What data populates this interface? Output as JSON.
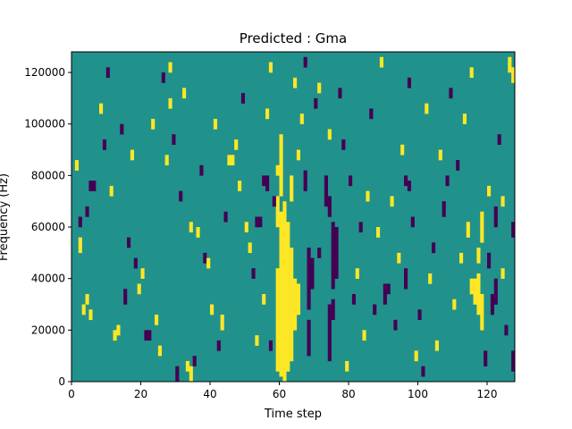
{
  "chart_data": {
    "type": "heatmap",
    "title": "Predicted : Gma",
    "xlabel": "Time step",
    "ylabel": "Frequency (Hz)",
    "xlim": [
      0,
      128
    ],
    "ylim": [
      0,
      128000
    ],
    "x_ticks": [
      0,
      20,
      40,
      60,
      80,
      100,
      120
    ],
    "y_ticks": [
      0,
      20000,
      40000,
      60000,
      80000,
      100000,
      120000
    ],
    "x_tick_labels": [
      "0",
      "20",
      "40",
      "60",
      "80",
      "100",
      "120"
    ],
    "y_tick_labels": [
      "0",
      "20000",
      "40000",
      "60000",
      "80000",
      "100000",
      "120000"
    ],
    "grid": false,
    "colormap": {
      "background_value": 0,
      "high_value": 1,
      "low_value": -1,
      "background_color": "#21918c",
      "high_color": "#fde725",
      "low_color": "#440154"
    },
    "column_bins": 128,
    "row_bins": 64,
    "cell_height_hz": 2000,
    "events": [
      {
        "x": 59,
        "y0": 4000,
        "y1": 44000,
        "value": 1
      },
      {
        "x": 60,
        "y0": 2000,
        "y1": 66000,
        "value": 1
      },
      {
        "x": 61,
        "y0": 0,
        "y1": 70000,
        "value": 1
      },
      {
        "x": 62,
        "y0": 4000,
        "y1": 62000,
        "value": 1
      },
      {
        "x": 63,
        "y0": 8000,
        "y1": 52000,
        "value": 1
      },
      {
        "x": 64,
        "y0": 20000,
        "y1": 40000,
        "value": 1
      },
      {
        "x": 65,
        "y0": 26000,
        "y1": 38000,
        "value": 1
      },
      {
        "x": 60,
        "y0": 72000,
        "y1": 96000,
        "value": 1
      },
      {
        "x": 59,
        "y0": 60000,
        "y1": 72000,
        "value": 1
      },
      {
        "x": 59,
        "y0": 80000,
        "y1": 84000,
        "value": 1
      },
      {
        "x": 63,
        "y0": 70000,
        "y1": 80000,
        "value": 1
      },
      {
        "x": 65,
        "y0": 86000,
        "y1": 90000,
        "value": 1
      },
      {
        "x": 68,
        "y0": 28000,
        "y1": 52000,
        "value": -1
      },
      {
        "x": 69,
        "y0": 36000,
        "y1": 48000,
        "value": -1
      },
      {
        "x": 67,
        "y0": 74000,
        "y1": 82000,
        "value": -1
      },
      {
        "x": 68,
        "y0": 10000,
        "y1": 24000,
        "value": -1
      },
      {
        "x": 74,
        "y0": 8000,
        "y1": 30000,
        "value": -1
      },
      {
        "x": 75,
        "y0": 36000,
        "y1": 62000,
        "value": -1
      },
      {
        "x": 76,
        "y0": 40000,
        "y1": 60000,
        "value": -1
      },
      {
        "x": 74,
        "y0": 64000,
        "y1": 72000,
        "value": -1
      },
      {
        "x": 75,
        "y0": 24000,
        "y1": 32000,
        "value": -1
      },
      {
        "x": 73,
        "y0": 68000,
        "y1": 80000,
        "value": -1
      },
      {
        "x": 116,
        "y0": 30000,
        "y1": 40000,
        "value": 1
      },
      {
        "x": 117,
        "y0": 26000,
        "y1": 42000,
        "value": 1
      },
      {
        "x": 118,
        "y0": 20000,
        "y1": 34000,
        "value": 1
      },
      {
        "x": 118,
        "y0": 54000,
        "y1": 66000,
        "value": 1
      },
      {
        "x": 117,
        "y0": 46000,
        "y1": 52000,
        "value": 1
      },
      {
        "x": 121,
        "y0": 26000,
        "y1": 34000,
        "value": -1
      },
      {
        "x": 122,
        "y0": 30000,
        "y1": 40000,
        "value": -1
      },
      {
        "x": 120,
        "y0": 44000,
        "y1": 50000,
        "value": -1
      },
      {
        "x": 122,
        "y0": 60000,
        "y1": 68000,
        "value": -1
      },
      {
        "x": 114,
        "y0": 56000,
        "y1": 62000,
        "value": 1
      },
      {
        "x": 115,
        "y0": 34000,
        "y1": 40000,
        "value": 1
      },
      {
        "x": 34,
        "y0": 0,
        "y1": 6000,
        "value": 1
      },
      {
        "x": 33,
        "y0": 4000,
        "y1": 8000,
        "value": 1
      },
      {
        "x": 30,
        "y0": 0,
        "y1": 6000,
        "value": -1
      },
      {
        "x": 35,
        "y0": 6000,
        "y1": 10000,
        "value": -1
      },
      {
        "x": 45,
        "y0": 84000,
        "y1": 88000,
        "value": 1
      },
      {
        "x": 46,
        "y0": 84000,
        "y1": 88000,
        "value": 1
      },
      {
        "x": 3,
        "y0": 26000,
        "y1": 30000,
        "value": 1
      },
      {
        "x": 4,
        "y0": 30000,
        "y1": 34000,
        "value": 1
      },
      {
        "x": 5,
        "y0": 24000,
        "y1": 28000,
        "value": 1
      },
      {
        "x": 5,
        "y0": 74000,
        "y1": 78000,
        "value": -1
      },
      {
        "x": 6,
        "y0": 74000,
        "y1": 78000,
        "value": -1
      },
      {
        "x": 2,
        "y0": 50000,
        "y1": 56000,
        "value": 1
      },
      {
        "x": 1,
        "y0": 82000,
        "y1": 86000,
        "value": 1
      },
      {
        "x": 90,
        "y0": 30000,
        "y1": 38000,
        "value": -1
      },
      {
        "x": 91,
        "y0": 34000,
        "y1": 38000,
        "value": -1
      },
      {
        "x": 96,
        "y0": 36000,
        "y1": 44000,
        "value": -1
      },
      {
        "x": 96,
        "y0": 76000,
        "y1": 80000,
        "value": -1
      },
      {
        "x": 97,
        "y0": 74000,
        "y1": 78000,
        "value": -1
      },
      {
        "x": 107,
        "y0": 64000,
        "y1": 70000,
        "value": -1
      },
      {
        "x": 108,
        "y0": 76000,
        "y1": 80000,
        "value": -1
      },
      {
        "x": 127,
        "y0": 4000,
        "y1": 12000,
        "value": -1
      },
      {
        "x": 127,
        "y0": 56000,
        "y1": 62000,
        "value": -1
      },
      {
        "x": 126,
        "y0": 120000,
        "y1": 126000,
        "value": 1
      },
      {
        "x": 127,
        "y0": 116000,
        "y1": 122000,
        "value": 1
      },
      {
        "x": 53,
        "y0": 60000,
        "y1": 64000,
        "value": -1
      },
      {
        "x": 54,
        "y0": 60000,
        "y1": 64000,
        "value": -1
      },
      {
        "x": 55,
        "y0": 76000,
        "y1": 80000,
        "value": -1
      },
      {
        "x": 56,
        "y0": 74000,
        "y1": 80000,
        "value": -1
      },
      {
        "x": 58,
        "y0": 68000,
        "y1": 72000,
        "value": -1
      },
      {
        "x": 57,
        "y0": 12000,
        "y1": 16000,
        "value": -1
      },
      {
        "x": 2,
        "y0": 60000,
        "y1": 64000,
        "value": -1
      },
      {
        "x": 4,
        "y0": 64000,
        "y1": 68000,
        "value": -1
      },
      {
        "x": 12,
        "y0": 16000,
        "y1": 20000,
        "value": 1
      },
      {
        "x": 13,
        "y0": 18000,
        "y1": 22000,
        "value": 1
      },
      {
        "x": 15,
        "y0": 30000,
        "y1": 36000,
        "value": -1
      },
      {
        "x": 16,
        "y0": 52000,
        "y1": 56000,
        "value": -1
      },
      {
        "x": 18,
        "y0": 44000,
        "y1": 48000,
        "value": -1
      },
      {
        "x": 19,
        "y0": 34000,
        "y1": 38000,
        "value": 1
      },
      {
        "x": 20,
        "y0": 40000,
        "y1": 44000,
        "value": 1
      },
      {
        "x": 21,
        "y0": 16000,
        "y1": 20000,
        "value": -1
      },
      {
        "x": 22,
        "y0": 16000,
        "y1": 20000,
        "value": -1
      },
      {
        "x": 24,
        "y0": 22000,
        "y1": 26000,
        "value": 1
      },
      {
        "x": 25,
        "y0": 10000,
        "y1": 14000,
        "value": 1
      },
      {
        "x": 26,
        "y0": 116000,
        "y1": 120000,
        "value": -1
      },
      {
        "x": 28,
        "y0": 120000,
        "y1": 124000,
        "value": 1
      },
      {
        "x": 28,
        "y0": 106000,
        "y1": 110000,
        "value": 1
      },
      {
        "x": 31,
        "y0": 70000,
        "y1": 74000,
        "value": -1
      },
      {
        "x": 34,
        "y0": 58000,
        "y1": 62000,
        "value": 1
      },
      {
        "x": 36,
        "y0": 56000,
        "y1": 60000,
        "value": 1
      },
      {
        "x": 38,
        "y0": 46000,
        "y1": 50000,
        "value": -1
      },
      {
        "x": 39,
        "y0": 44000,
        "y1": 48000,
        "value": 1
      },
      {
        "x": 40,
        "y0": 26000,
        "y1": 30000,
        "value": 1
      },
      {
        "x": 42,
        "y0": 12000,
        "y1": 16000,
        "value": -1
      },
      {
        "x": 43,
        "y0": 20000,
        "y1": 26000,
        "value": 1
      },
      {
        "x": 44,
        "y0": 62000,
        "y1": 66000,
        "value": -1
      },
      {
        "x": 48,
        "y0": 74000,
        "y1": 78000,
        "value": 1
      },
      {
        "x": 50,
        "y0": 58000,
        "y1": 62000,
        "value": 1
      },
      {
        "x": 51,
        "y0": 50000,
        "y1": 54000,
        "value": 1
      },
      {
        "x": 52,
        "y0": 40000,
        "y1": 44000,
        "value": -1
      },
      {
        "x": 53,
        "y0": 14000,
        "y1": 18000,
        "value": 1
      },
      {
        "x": 55,
        "y0": 30000,
        "y1": 34000,
        "value": 1
      },
      {
        "x": 56,
        "y0": 102000,
        "y1": 106000,
        "value": 1
      },
      {
        "x": 57,
        "y0": 120000,
        "y1": 124000,
        "value": 1
      },
      {
        "x": 64,
        "y0": 114000,
        "y1": 118000,
        "value": 1
      },
      {
        "x": 66,
        "y0": 100000,
        "y1": 104000,
        "value": 1
      },
      {
        "x": 67,
        "y0": 122000,
        "y1": 126000,
        "value": -1
      },
      {
        "x": 70,
        "y0": 106000,
        "y1": 110000,
        "value": -1
      },
      {
        "x": 71,
        "y0": 112000,
        "y1": 116000,
        "value": 1
      },
      {
        "x": 74,
        "y0": 94000,
        "y1": 98000,
        "value": 1
      },
      {
        "x": 77,
        "y0": 110000,
        "y1": 114000,
        "value": -1
      },
      {
        "x": 78,
        "y0": 90000,
        "y1": 94000,
        "value": -1
      },
      {
        "x": 80,
        "y0": 76000,
        "y1": 80000,
        "value": -1
      },
      {
        "x": 82,
        "y0": 40000,
        "y1": 44000,
        "value": 1
      },
      {
        "x": 84,
        "y0": 16000,
        "y1": 20000,
        "value": 1
      },
      {
        "x": 85,
        "y0": 70000,
        "y1": 74000,
        "value": 1
      },
      {
        "x": 86,
        "y0": 102000,
        "y1": 106000,
        "value": -1
      },
      {
        "x": 87,
        "y0": 26000,
        "y1": 30000,
        "value": -1
      },
      {
        "x": 88,
        "y0": 56000,
        "y1": 60000,
        "value": 1
      },
      {
        "x": 89,
        "y0": 122000,
        "y1": 126000,
        "value": 1
      },
      {
        "x": 92,
        "y0": 68000,
        "y1": 72000,
        "value": 1
      },
      {
        "x": 93,
        "y0": 20000,
        "y1": 24000,
        "value": -1
      },
      {
        "x": 94,
        "y0": 46000,
        "y1": 50000,
        "value": 1
      },
      {
        "x": 97,
        "y0": 114000,
        "y1": 118000,
        "value": -1
      },
      {
        "x": 98,
        "y0": 60000,
        "y1": 64000,
        "value": -1
      },
      {
        "x": 99,
        "y0": 8000,
        "y1": 12000,
        "value": 1
      },
      {
        "x": 100,
        "y0": 24000,
        "y1": 28000,
        "value": -1
      },
      {
        "x": 102,
        "y0": 104000,
        "y1": 108000,
        "value": 1
      },
      {
        "x": 103,
        "y0": 38000,
        "y1": 42000,
        "value": 1
      },
      {
        "x": 104,
        "y0": 50000,
        "y1": 54000,
        "value": -1
      },
      {
        "x": 105,
        "y0": 12000,
        "y1": 16000,
        "value": 1
      },
      {
        "x": 106,
        "y0": 86000,
        "y1": 90000,
        "value": 1
      },
      {
        "x": 109,
        "y0": 110000,
        "y1": 114000,
        "value": -1
      },
      {
        "x": 110,
        "y0": 28000,
        "y1": 32000,
        "value": 1
      },
      {
        "x": 111,
        "y0": 82000,
        "y1": 86000,
        "value": -1
      },
      {
        "x": 112,
        "y0": 46000,
        "y1": 50000,
        "value": 1
      },
      {
        "x": 113,
        "y0": 100000,
        "y1": 104000,
        "value": 1
      },
      {
        "x": 119,
        "y0": 6000,
        "y1": 12000,
        "value": -1
      },
      {
        "x": 120,
        "y0": 72000,
        "y1": 76000,
        "value": 1
      },
      {
        "x": 123,
        "y0": 92000,
        "y1": 96000,
        "value": -1
      },
      {
        "x": 124,
        "y0": 68000,
        "y1": 72000,
        "value": 1
      },
      {
        "x": 125,
        "y0": 18000,
        "y1": 22000,
        "value": -1
      },
      {
        "x": 8,
        "y0": 104000,
        "y1": 108000,
        "value": 1
      },
      {
        "x": 9,
        "y0": 90000,
        "y1": 94000,
        "value": -1
      },
      {
        "x": 10,
        "y0": 118000,
        "y1": 122000,
        "value": -1
      },
      {
        "x": 11,
        "y0": 72000,
        "y1": 76000,
        "value": 1
      },
      {
        "x": 14,
        "y0": 96000,
        "y1": 100000,
        "value": -1
      },
      {
        "x": 17,
        "y0": 86000,
        "y1": 90000,
        "value": 1
      },
      {
        "x": 23,
        "y0": 98000,
        "y1": 102000,
        "value": 1
      },
      {
        "x": 27,
        "y0": 84000,
        "y1": 88000,
        "value": 1
      },
      {
        "x": 29,
        "y0": 92000,
        "y1": 96000,
        "value": -1
      },
      {
        "x": 32,
        "y0": 110000,
        "y1": 114000,
        "value": 1
      },
      {
        "x": 37,
        "y0": 80000,
        "y1": 84000,
        "value": -1
      },
      {
        "x": 41,
        "y0": 98000,
        "y1": 102000,
        "value": 1
      },
      {
        "x": 47,
        "y0": 90000,
        "y1": 94000,
        "value": 1
      },
      {
        "x": 49,
        "y0": 108000,
        "y1": 112000,
        "value": -1
      },
      {
        "x": 71,
        "y0": 48000,
        "y1": 52000,
        "value": -1
      },
      {
        "x": 79,
        "y0": 4000,
        "y1": 8000,
        "value": 1
      },
      {
        "x": 81,
        "y0": 30000,
        "y1": 34000,
        "value": -1
      },
      {
        "x": 83,
        "y0": 58000,
        "y1": 62000,
        "value": -1
      },
      {
        "x": 95,
        "y0": 88000,
        "y1": 92000,
        "value": 1
      },
      {
        "x": 101,
        "y0": 2000,
        "y1": 6000,
        "value": -1
      },
      {
        "x": 115,
        "y0": 118000,
        "y1": 122000,
        "value": 1
      },
      {
        "x": 124,
        "y0": 40000,
        "y1": 44000,
        "value": 1
      }
    ]
  }
}
